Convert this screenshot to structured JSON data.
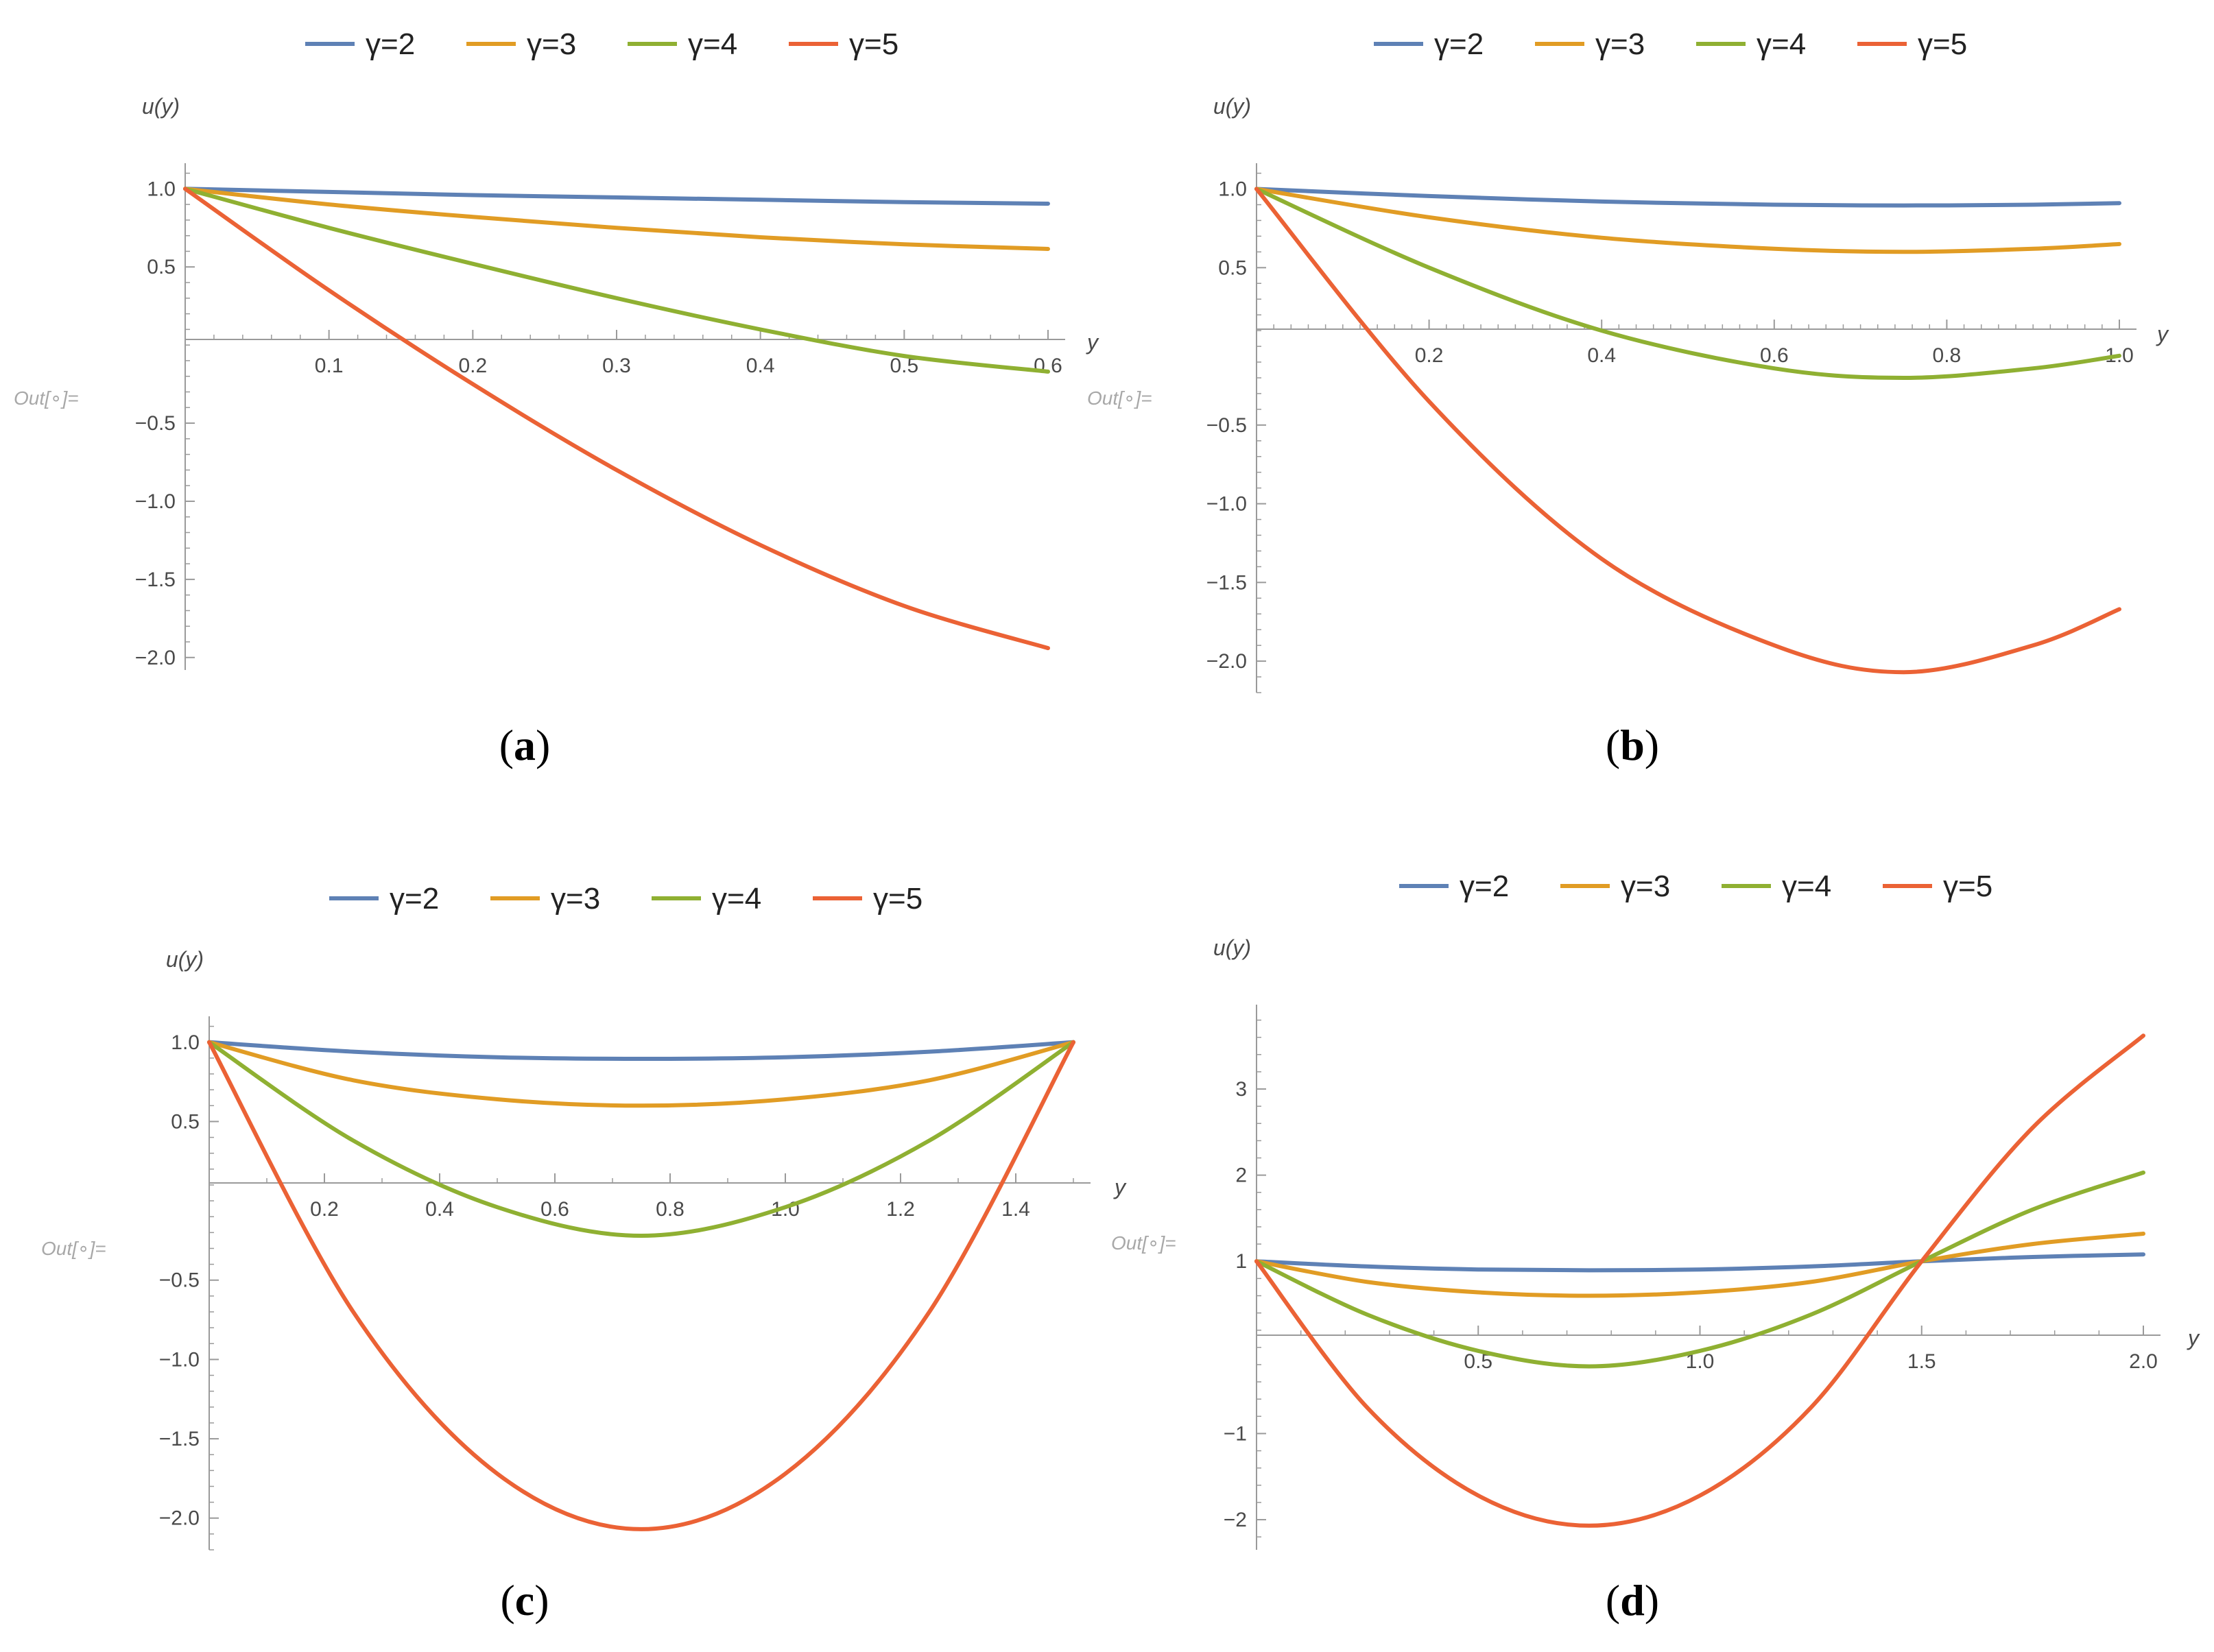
{
  "figure": {
    "out_label": "Out[∘]=",
    "colors": {
      "gamma2": "#5E81B5",
      "gamma3": "#E19C24",
      "gamma4": "#8FB032",
      "gamma5": "#EB6235",
      "axis": "#9a9a9a"
    }
  },
  "chart_data": [
    {
      "type": "line",
      "caption_letter": "a",
      "xlabel": "y",
      "ylabel": "u(y)",
      "xlim": [
        0,
        0.6
      ],
      "ylim": [
        -2.08,
        1.12
      ],
      "x_ticks": [
        "0.1",
        "0.2",
        "0.3",
        "0.4",
        "0.5",
        "0.6"
      ],
      "y_ticks": [
        "1.0",
        "0.5",
        "−0.5",
        "−1.0",
        "−1.5",
        "−2.0"
      ],
      "series": [
        {
          "name": "γ=2",
          "x": [
            0,
            0.1,
            0.2,
            0.3,
            0.4,
            0.5,
            0.6
          ],
          "values": [
            1.0,
            0.98,
            0.96,
            0.945,
            0.93,
            0.915,
            0.905
          ]
        },
        {
          "name": "γ=3",
          "x": [
            0,
            0.1,
            0.2,
            0.3,
            0.4,
            0.5,
            0.6
          ],
          "values": [
            1.0,
            0.9,
            0.82,
            0.75,
            0.69,
            0.645,
            0.615
          ]
        },
        {
          "name": "γ=4",
          "x": [
            0,
            0.1,
            0.2,
            0.3,
            0.4,
            0.5,
            0.6
          ],
          "values": [
            1.0,
            0.75,
            0.52,
            0.3,
            0.1,
            -0.07,
            -0.17
          ]
        },
        {
          "name": "γ=5",
          "x": [
            0,
            0.1,
            0.2,
            0.3,
            0.4,
            0.5,
            0.6
          ],
          "values": [
            1.0,
            0.35,
            -0.25,
            -0.8,
            -1.28,
            -1.67,
            -1.94
          ]
        }
      ]
    },
    {
      "type": "line",
      "caption_letter": "b",
      "xlabel": "y",
      "ylabel": "u(y)",
      "xlim": [
        0,
        1.0
      ],
      "ylim": [
        -2.2,
        1.12
      ],
      "x_ticks": [
        "0.2",
        "0.4",
        "0.6",
        "0.8",
        "1.0"
      ],
      "y_ticks": [
        "1.0",
        "0.5",
        "−0.5",
        "−1.0",
        "−1.5",
        "−2.0"
      ],
      "series": [
        {
          "name": "γ=2",
          "x": [
            0,
            0.2,
            0.4,
            0.6,
            0.75,
            0.9,
            1.0
          ],
          "values": [
            1.0,
            0.955,
            0.92,
            0.9,
            0.895,
            0.9,
            0.91
          ]
        },
        {
          "name": "γ=3",
          "x": [
            0,
            0.2,
            0.4,
            0.6,
            0.75,
            0.9,
            1.0
          ],
          "values": [
            1.0,
            0.82,
            0.69,
            0.62,
            0.6,
            0.62,
            0.65
          ]
        },
        {
          "name": "γ=4",
          "x": [
            0,
            0.2,
            0.4,
            0.6,
            0.75,
            0.9,
            1.0
          ],
          "values": [
            1.0,
            0.5,
            0.1,
            -0.14,
            -0.2,
            -0.14,
            -0.06
          ]
        },
        {
          "name": "γ=5",
          "x": [
            0,
            0.2,
            0.4,
            0.6,
            0.75,
            0.9,
            1.0
          ],
          "values": [
            1.0,
            -0.35,
            -1.35,
            -1.9,
            -2.07,
            -1.9,
            -1.67
          ]
        }
      ]
    },
    {
      "type": "line",
      "caption_letter": "c",
      "xlabel": "y",
      "ylabel": "u(y)",
      "xlim": [
        0,
        1.5
      ],
      "ylim": [
        -2.2,
        1.12
      ],
      "x_ticks": [
        "0.2",
        "0.4",
        "0.6",
        "0.8",
        "1.0",
        "1.2",
        "1.4"
      ],
      "y_ticks": [
        "1.0",
        "0.5",
        "−0.5",
        "−1.0",
        "−1.5",
        "−2.0"
      ],
      "series": [
        {
          "name": "γ=2",
          "x": [
            0,
            0.25,
            0.5,
            0.75,
            1.0,
            1.25,
            1.5
          ],
          "values": [
            1.0,
            0.94,
            0.905,
            0.895,
            0.905,
            0.94,
            1.0
          ]
        },
        {
          "name": "γ=3",
          "x": [
            0,
            0.25,
            0.5,
            0.75,
            1.0,
            1.25,
            1.5
          ],
          "values": [
            1.0,
            0.76,
            0.64,
            0.6,
            0.64,
            0.76,
            1.0
          ]
        },
        {
          "name": "γ=4",
          "x": [
            0,
            0.25,
            0.5,
            0.75,
            1.0,
            1.25,
            1.5
          ],
          "values": [
            1.0,
            0.38,
            -0.04,
            -0.22,
            -0.04,
            0.38,
            1.0
          ]
        },
        {
          "name": "γ=5",
          "x": [
            0,
            0.25,
            0.5,
            0.75,
            1.0,
            1.25,
            1.5
          ],
          "values": [
            1.0,
            -0.7,
            -1.72,
            -2.07,
            -1.72,
            -0.7,
            1.0
          ]
        }
      ]
    },
    {
      "type": "line",
      "caption_letter": "d",
      "xlabel": "y",
      "ylabel": "u(y)",
      "xlim": [
        0,
        2.0
      ],
      "ylim": [
        -2.35,
        3.9
      ],
      "x_ticks": [
        "0.5",
        "1.0",
        "1.5",
        "2.0"
      ],
      "y_ticks": [
        "3",
        "2",
        "1",
        "−1",
        "−2"
      ],
      "series": [
        {
          "name": "γ=2",
          "x": [
            0,
            0.25,
            0.5,
            0.75,
            1.0,
            1.25,
            1.5,
            1.75,
            2.0
          ],
          "values": [
            1.0,
            0.94,
            0.905,
            0.895,
            0.905,
            0.94,
            1.0,
            1.05,
            1.08
          ]
        },
        {
          "name": "γ=3",
          "x": [
            0,
            0.25,
            0.5,
            0.75,
            1.0,
            1.25,
            1.5,
            1.75,
            2.0
          ],
          "values": [
            1.0,
            0.76,
            0.64,
            0.6,
            0.64,
            0.76,
            1.0,
            1.2,
            1.32
          ]
        },
        {
          "name": "γ=4",
          "x": [
            0,
            0.25,
            0.5,
            0.75,
            1.0,
            1.25,
            1.5,
            1.75,
            2.0
          ],
          "values": [
            1.0,
            0.38,
            -0.04,
            -0.22,
            -0.04,
            0.38,
            1.0,
            1.6,
            2.03
          ]
        },
        {
          "name": "γ=5",
          "x": [
            0,
            0.25,
            0.5,
            0.75,
            1.0,
            1.25,
            1.5,
            1.75,
            2.0
          ],
          "values": [
            1.0,
            -0.7,
            -1.72,
            -2.07,
            -1.72,
            -0.7,
            1.0,
            2.55,
            3.62
          ]
        }
      ]
    }
  ]
}
